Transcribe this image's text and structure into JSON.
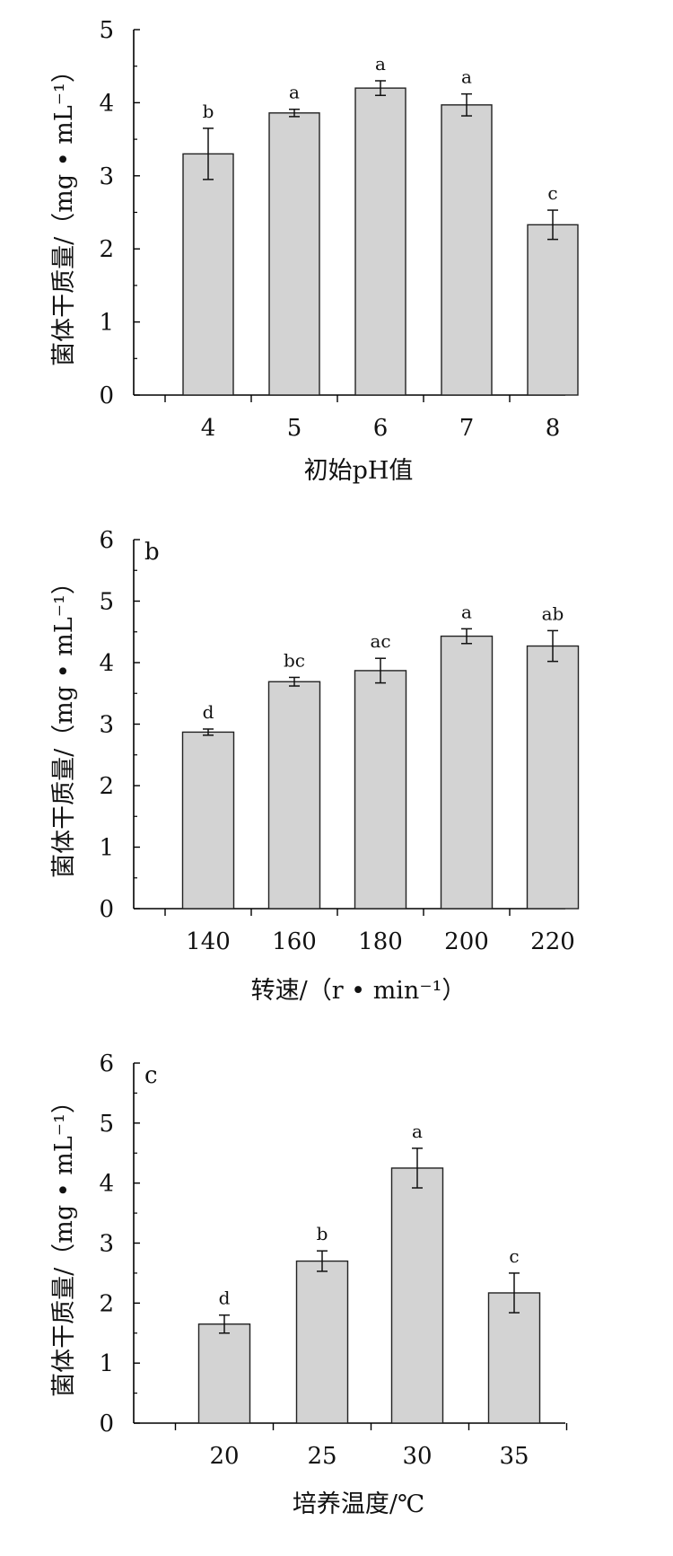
{
  "chart_data": [
    {
      "type": "bar",
      "panel_label": "",
      "categories": [
        "4",
        "5",
        "6",
        "7",
        "8"
      ],
      "values": [
        3.3,
        3.86,
        4.2,
        3.97,
        2.33
      ],
      "errors": [
        0.35,
        0.05,
        0.1,
        0.15,
        0.2
      ],
      "sig_letters": [
        "b",
        "a",
        "a",
        "a",
        "c"
      ],
      "xlabel": "初始pH值",
      "ylabel": "菌体干质量/（mg • mL⁻¹）",
      "ylim": [
        0,
        5
      ],
      "yticks": [
        "0",
        "1",
        "2",
        "3",
        "4",
        "5"
      ],
      "bar_color": "#d3d3d3",
      "grid": false
    },
    {
      "type": "bar",
      "panel_label": "b",
      "categories": [
        "140",
        "160",
        "180",
        "200",
        "220"
      ],
      "values": [
        2.87,
        3.69,
        3.87,
        4.43,
        4.27
      ],
      "errors": [
        0.05,
        0.07,
        0.2,
        0.12,
        0.25
      ],
      "sig_letters": [
        "d",
        "bc",
        "ac",
        "a",
        "ab"
      ],
      "xlabel": "转速/（r • min⁻¹）",
      "ylabel": "菌体干质量/（mg • mL⁻¹）",
      "ylim": [
        0,
        6
      ],
      "yticks": [
        "0",
        "1",
        "2",
        "3",
        "4",
        "5",
        "6"
      ],
      "bar_color": "#d3d3d3",
      "grid": false
    },
    {
      "type": "bar",
      "panel_label": "c",
      "categories": [
        "20",
        "25",
        "30",
        "35"
      ],
      "values": [
        1.65,
        2.7,
        4.25,
        2.17
      ],
      "errors": [
        0.15,
        0.17,
        0.33,
        0.33
      ],
      "sig_letters": [
        "d",
        "b",
        "a",
        "c"
      ],
      "xlabel": "培养温度/℃",
      "ylabel": "菌体干质量/（mg • mL⁻¹）",
      "ylim": [
        0,
        6
      ],
      "yticks": [
        "0",
        "1",
        "2",
        "3",
        "4",
        "5",
        "6"
      ],
      "bar_color": "#d3d3d3",
      "grid": false
    }
  ]
}
